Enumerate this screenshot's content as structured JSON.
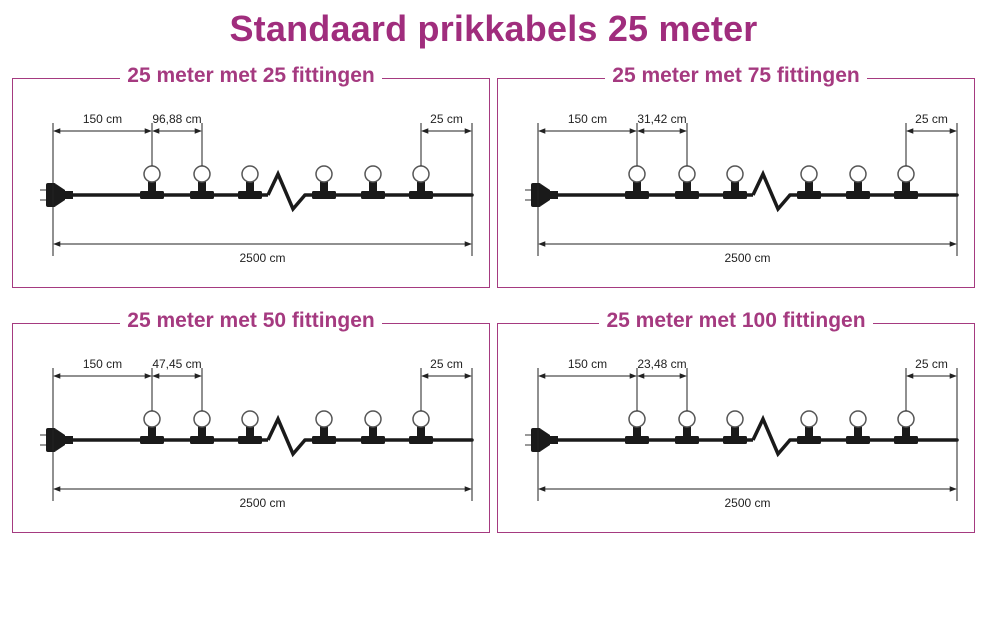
{
  "title": "Standaard prikkabels 25 meter",
  "colors": {
    "accent": "#a53a80",
    "title": "#a02d7d",
    "cable": "#1a1a1a",
    "dimension": "#222222",
    "bulb_fill": "#ffffff",
    "bulb_stroke": "#555555"
  },
  "panels": [
    {
      "title": "25 meter met 25 fittingen",
      "lead_label": "150 cm",
      "spacing_label": "96,88 cm",
      "end_label": "25 cm",
      "total_label": "2500 cm"
    },
    {
      "title": "25 meter met 75 fittingen",
      "lead_label": "150 cm",
      "spacing_label": "31,42 cm",
      "end_label": "25 cm",
      "total_label": "2500 cm"
    },
    {
      "title": "25 meter met 50 fittingen",
      "lead_label": "150 cm",
      "spacing_label": "47,45 cm",
      "end_label": "25 cm",
      "total_label": "2500 cm"
    },
    {
      "title": "25 meter met 100 fittingen",
      "lead_label": "150 cm",
      "spacing_label": "23,48 cm",
      "end_label": "25 cm",
      "total_label": "2500 cm"
    }
  ]
}
